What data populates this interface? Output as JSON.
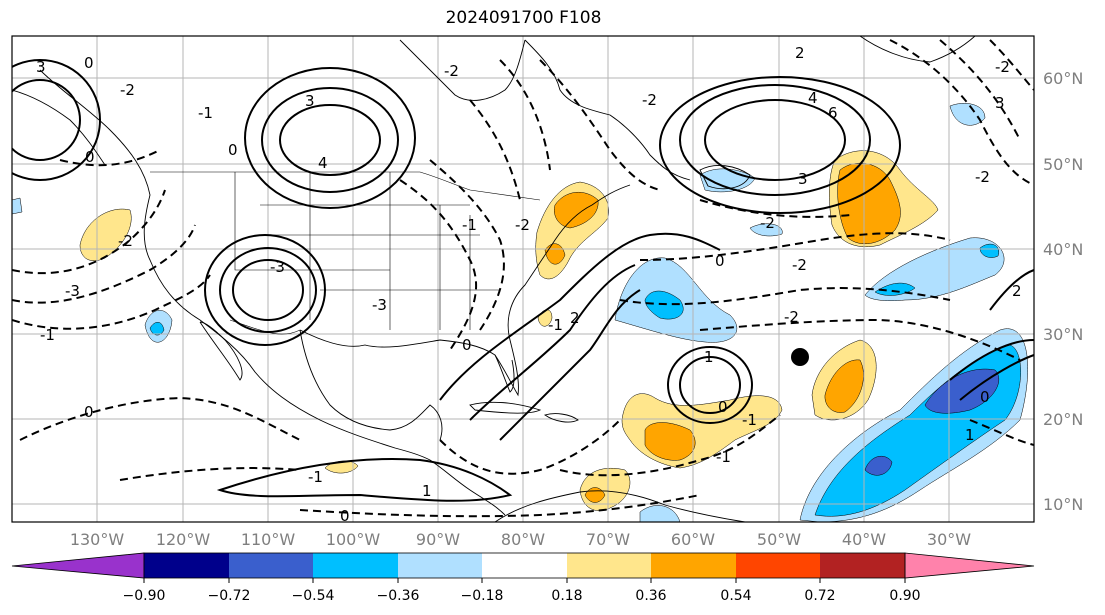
{
  "title": "2024091700 F108",
  "map": {
    "lat_labels": [
      "60°N",
      "50°N",
      "40°N",
      "30°N",
      "20°N",
      "10°N"
    ],
    "lon_labels": [
      "130°W",
      "120°W",
      "110°W",
      "100°W",
      "90°W",
      "80°W",
      "70°W",
      "60°W",
      "50°W",
      "40°W",
      "30°W"
    ],
    "contour_labels": [
      "3",
      "0",
      "-2",
      "-1",
      "0",
      "-2",
      "0",
      "-3",
      "-1",
      "-3",
      "3",
      "4",
      "-3",
      "-2",
      "-1",
      "-2",
      "2",
      "-2",
      "3",
      "6",
      "4",
      "2",
      "3",
      "-2",
      "-2",
      "0",
      "-2",
      "-2",
      "2",
      "0",
      "0",
      "-1",
      "1",
      "0",
      "-1",
      "0",
      "-1",
      "1",
      "-1",
      "0",
      "-2",
      "1"
    ],
    "marker": "black-dot"
  },
  "colorbar": {
    "tick_labels": [
      "−0.90",
      "−0.72",
      "−0.54",
      "−0.36",
      "−0.18",
      "0.18",
      "0.36",
      "0.54",
      "0.72",
      "0.90"
    ],
    "colors": [
      "#9932cc",
      "#00008b",
      "#3a5fcd",
      "#00bfff",
      "#b0e0ff",
      "#ffffff",
      "#ffe68c",
      "#ffa500",
      "#ff4500",
      "#b22222",
      "#ff82ab"
    ]
  }
}
